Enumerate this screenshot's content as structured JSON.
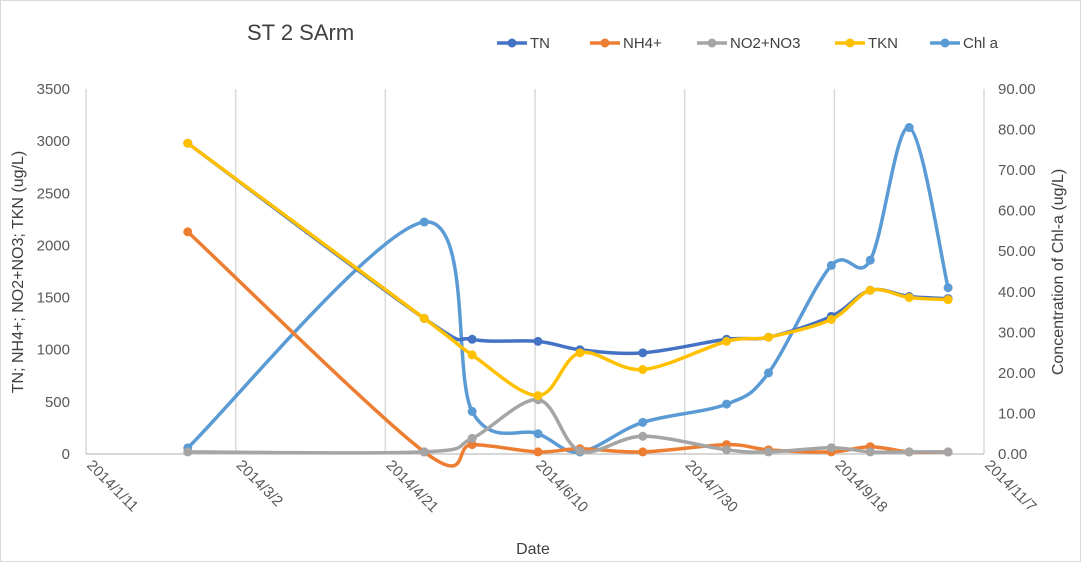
{
  "chart_data": {
    "type": "line",
    "title": "ST 2 SArm",
    "xlabel": "Date",
    "ylabel": "TN; NH4+; NO2+NO3; TKN (ug/L)",
    "y2label": "Concentration of Chl-a (ug/L)",
    "x_range": [
      "2014/1/11",
      "2014/11/7"
    ],
    "x_ticks": [
      "2014/1/11",
      "2014/3/2",
      "2014/4/21",
      "2014/6/10",
      "2014/7/30",
      "2014/9/18",
      "2014/11/7"
    ],
    "ylim": [
      0,
      3500
    ],
    "y_ticks": [
      "0",
      "500",
      "1000",
      "1500",
      "2000",
      "2500",
      "3000",
      "3500"
    ],
    "y2lim": [
      0,
      90
    ],
    "y2_ticks": [
      "0.00",
      "10.00",
      "20.00",
      "30.00",
      "40.00",
      "50.00",
      "60.00",
      "70.00",
      "80.00",
      "90.00"
    ],
    "grid": "vertical",
    "legend_position": "top-right",
    "x": [
      "2014/2/14",
      "2014/5/4",
      "2014/5/20",
      "2014/6/11",
      "2014/6/25",
      "2014/7/16",
      "2014/8/13",
      "2014/8/27",
      "2014/9/17",
      "2014/9/30",
      "2014/10/13",
      "2014/10/26"
    ],
    "series": [
      {
        "name": "TN",
        "axis": "left",
        "color": "#4472C4",
        "values": [
          2980,
          1300,
          1100,
          1080,
          1000,
          970,
          1100,
          1120,
          1320,
          1570,
          1510,
          1490
        ]
      },
      {
        "name": "NH4+",
        "axis": "left",
        "color": "#ED7D31",
        "values": [
          2130,
          20,
          90,
          20,
          50,
          20,
          90,
          40,
          20,
          70,
          20,
          20
        ]
      },
      {
        "name": "NO2+NO3",
        "axis": "left",
        "color": "#A5A5A5",
        "values": [
          20,
          20,
          150,
          520,
          30,
          170,
          40,
          20,
          60,
          20,
          20,
          20
        ]
      },
      {
        "name": "TKN",
        "axis": "left",
        "color": "#FFC000",
        "values": [
          2980,
          1300,
          950,
          560,
          970,
          810,
          1080,
          1120,
          1290,
          1570,
          1500,
          1480
        ]
      },
      {
        "name": "Chl a",
        "axis": "right",
        "color": "#5B9BD5",
        "values": [
          1.5,
          57.2,
          10.5,
          5.0,
          0.5,
          7.8,
          12.3,
          20.0,
          46.5,
          47.8,
          80.5,
          41.0
        ]
      }
    ]
  }
}
